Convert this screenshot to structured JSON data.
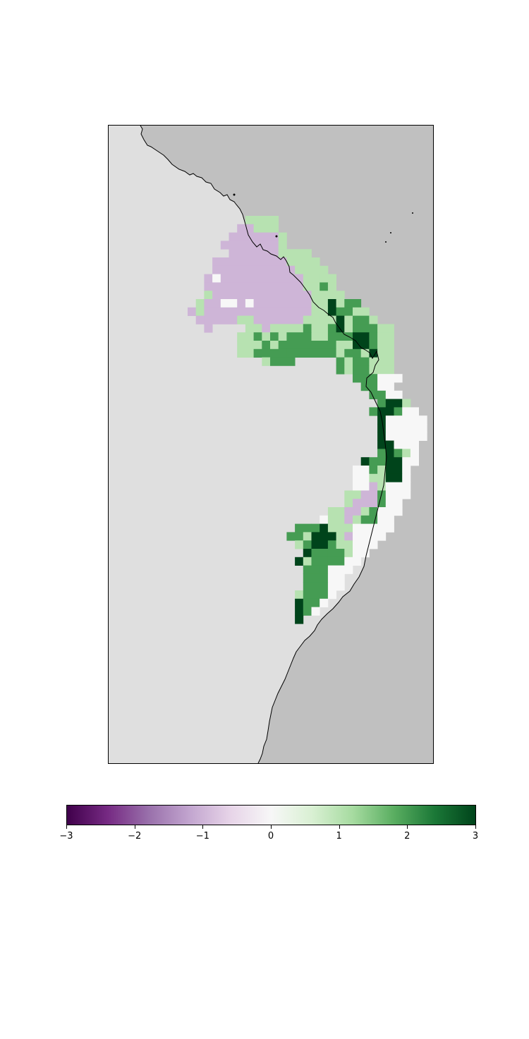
{
  "colors": {
    "ocean": "#c0c0c0",
    "land": "#dfdfdf",
    "coastline": "#000000",
    "colormap": [
      "#40004b",
      "#762a83",
      "#9970ab",
      "#c2a5cf",
      "#e7d4e8",
      "#f7f7f7",
      "#d9f0d3",
      "#a6dba0",
      "#5aae61",
      "#1b7837",
      "#00441b"
    ]
  },
  "chart_data": {
    "type": "heatmap",
    "vmin": -3,
    "vmax": 3,
    "colorbar_ticks": [
      "−3",
      "−2",
      "−1",
      "0",
      "1",
      "2",
      "3"
    ],
    "cell_rows": [
      {
        "row": 0,
        "segments": [
          [
            12,
            12,
            1
          ],
          [
            13,
            15,
            1
          ]
        ]
      },
      {
        "row": 1,
        "segments": [
          [
            11,
            11,
            -1
          ],
          [
            12,
            12,
            -1
          ],
          [
            13,
            15,
            1
          ]
        ]
      },
      {
        "row": 2,
        "segments": [
          [
            10,
            15,
            -1
          ],
          [
            16,
            16,
            1
          ]
        ]
      },
      {
        "row": 3,
        "segments": [
          [
            9,
            15,
            -1
          ],
          [
            16,
            16,
            1
          ]
        ]
      },
      {
        "row": 4,
        "segments": [
          [
            10,
            15,
            -1
          ],
          [
            16,
            17,
            1
          ],
          [
            18,
            19,
            1
          ]
        ]
      },
      {
        "row": 5,
        "segments": [
          [
            8,
            16,
            -1
          ],
          [
            17,
            18,
            1
          ],
          [
            19,
            20,
            1
          ]
        ]
      },
      {
        "row": 6,
        "segments": [
          [
            8,
            17,
            -1
          ],
          [
            18,
            19,
            1
          ],
          [
            20,
            21,
            1
          ]
        ]
      },
      {
        "row": 7,
        "segments": [
          [
            7,
            7,
            -1
          ],
          [
            8,
            8,
            0
          ],
          [
            9,
            18,
            -1
          ],
          [
            19,
            20,
            1
          ],
          [
            21,
            22,
            1
          ]
        ]
      },
      {
        "row": 8,
        "segments": [
          [
            7,
            7,
            -1
          ],
          [
            8,
            18,
            -1
          ],
          [
            19,
            20,
            1
          ],
          [
            21,
            21,
            2
          ],
          [
            22,
            22,
            1
          ]
        ]
      },
      {
        "row": 9,
        "segments": [
          [
            7,
            7,
            1
          ],
          [
            8,
            19,
            -1
          ],
          [
            20,
            22,
            1
          ],
          [
            23,
            23,
            1
          ]
        ]
      },
      {
        "row": 10,
        "segments": [
          [
            6,
            6,
            1
          ],
          [
            7,
            8,
            -1
          ],
          [
            9,
            10,
            0
          ],
          [
            11,
            11,
            -1
          ],
          [
            12,
            12,
            0
          ],
          [
            13,
            19,
            -1
          ],
          [
            20,
            21,
            1
          ],
          [
            22,
            22,
            3
          ],
          [
            23,
            23,
            1
          ],
          [
            24,
            25,
            2
          ]
        ]
      },
      {
        "row": 11,
        "segments": [
          [
            5,
            5,
            -1
          ],
          [
            6,
            6,
            1
          ],
          [
            7,
            19,
            -1
          ],
          [
            20,
            21,
            1
          ],
          [
            22,
            22,
            3
          ],
          [
            23,
            24,
            2
          ],
          [
            25,
            26,
            1
          ]
        ]
      },
      {
        "row": 12,
        "segments": [
          [
            6,
            6,
            -1
          ],
          [
            7,
            10,
            -1
          ],
          [
            11,
            12,
            1
          ],
          [
            13,
            18,
            -1
          ],
          [
            19,
            20,
            1
          ],
          [
            21,
            22,
            1
          ],
          [
            23,
            23,
            3
          ],
          [
            24,
            24,
            1
          ],
          [
            25,
            26,
            2
          ],
          [
            27,
            27,
            1
          ]
        ]
      },
      {
        "row": 13,
        "segments": [
          [
            7,
            7,
            -1
          ],
          [
            12,
            13,
            1
          ],
          [
            14,
            14,
            -1
          ],
          [
            15,
            18,
            1
          ],
          [
            19,
            19,
            2
          ],
          [
            20,
            21,
            1
          ],
          [
            22,
            22,
            2
          ],
          [
            23,
            23,
            3
          ],
          [
            24,
            24,
            1
          ],
          [
            25,
            27,
            2
          ],
          [
            28,
            29,
            1
          ]
        ]
      },
      {
        "row": 14,
        "segments": [
          [
            11,
            11,
            1
          ],
          [
            12,
            12,
            1
          ],
          [
            13,
            13,
            2
          ],
          [
            14,
            14,
            1
          ],
          [
            15,
            15,
            2
          ],
          [
            16,
            16,
            1
          ],
          [
            17,
            19,
            2
          ],
          [
            20,
            21,
            1
          ],
          [
            22,
            24,
            2
          ],
          [
            25,
            26,
            3
          ],
          [
            27,
            27,
            2
          ],
          [
            28,
            29,
            1
          ]
        ]
      },
      {
        "row": 15,
        "segments": [
          [
            11,
            12,
            1
          ],
          [
            13,
            13,
            1
          ],
          [
            14,
            14,
            2
          ],
          [
            15,
            15,
            1
          ],
          [
            16,
            22,
            2
          ],
          [
            23,
            24,
            1
          ],
          [
            25,
            26,
            3
          ],
          [
            27,
            27,
            2
          ],
          [
            28,
            29,
            1
          ]
        ]
      },
      {
        "row": 16,
        "segments": [
          [
            11,
            12,
            1
          ],
          [
            13,
            16,
            2
          ],
          [
            17,
            22,
            2
          ],
          [
            23,
            23,
            1
          ],
          [
            24,
            25,
            2
          ],
          [
            26,
            26,
            1
          ],
          [
            27,
            27,
            3
          ],
          [
            28,
            29,
            1
          ]
        ]
      },
      {
        "row": 17,
        "segments": [
          [
            14,
            14,
            1
          ],
          [
            15,
            17,
            2
          ],
          [
            23,
            23,
            2
          ],
          [
            24,
            24,
            1
          ],
          [
            25,
            26,
            2
          ],
          [
            27,
            29,
            1
          ]
        ]
      },
      {
        "row": 18,
        "segments": [
          [
            23,
            23,
            2
          ],
          [
            24,
            24,
            1
          ],
          [
            25,
            26,
            2
          ],
          [
            27,
            27,
            1
          ],
          [
            28,
            29,
            1
          ]
        ]
      },
      {
        "row": 19,
        "segments": [
          [
            25,
            27,
            2
          ],
          [
            28,
            29,
            0
          ],
          [
            30,
            30,
            0
          ]
        ]
      },
      {
        "row": 20,
        "segments": [
          [
            26,
            27,
            2
          ],
          [
            28,
            29,
            0
          ]
        ]
      },
      {
        "row": 21,
        "segments": [
          [
            27,
            28,
            2
          ],
          [
            29,
            30,
            0
          ]
        ]
      },
      {
        "row": 22,
        "segments": [
          [
            28,
            28,
            2
          ],
          [
            29,
            30,
            3
          ],
          [
            31,
            31,
            1
          ]
        ]
      },
      {
        "row": 23,
        "segments": [
          [
            27,
            27,
            2
          ],
          [
            28,
            29,
            3
          ],
          [
            30,
            30,
            2
          ],
          [
            31,
            32,
            0
          ]
        ]
      },
      {
        "row": 24,
        "segments": [
          [
            28,
            28,
            3
          ],
          [
            29,
            33,
            0
          ]
        ]
      },
      {
        "row": 25,
        "segments": [
          [
            28,
            28,
            3
          ],
          [
            29,
            33,
            0
          ]
        ]
      },
      {
        "row": 26,
        "segments": [
          [
            28,
            28,
            3
          ],
          [
            29,
            33,
            0
          ]
        ]
      },
      {
        "row": 27,
        "segments": [
          [
            28,
            28,
            3
          ],
          [
            29,
            29,
            3
          ],
          [
            30,
            32,
            0
          ]
        ]
      },
      {
        "row": 28,
        "segments": [
          [
            28,
            28,
            2
          ],
          [
            29,
            29,
            3
          ],
          [
            30,
            30,
            2
          ],
          [
            31,
            31,
            1
          ],
          [
            32,
            32,
            0
          ]
        ]
      },
      {
        "row": 29,
        "segments": [
          [
            26,
            26,
            3
          ],
          [
            27,
            27,
            2
          ],
          [
            28,
            28,
            2
          ],
          [
            29,
            30,
            3
          ],
          [
            31,
            32,
            0
          ]
        ]
      },
      {
        "row": 30,
        "segments": [
          [
            25,
            26,
            0
          ],
          [
            27,
            27,
            2
          ],
          [
            28,
            28,
            1
          ],
          [
            29,
            30,
            3
          ],
          [
            31,
            31,
            0
          ]
        ]
      },
      {
        "row": 31,
        "segments": [
          [
            25,
            26,
            0
          ],
          [
            27,
            27,
            1
          ],
          [
            28,
            28,
            1
          ],
          [
            29,
            30,
            3
          ],
          [
            31,
            31,
            0
          ]
        ]
      },
      {
        "row": 32,
        "segments": [
          [
            25,
            26,
            0
          ],
          [
            27,
            27,
            -1
          ],
          [
            28,
            28,
            1
          ],
          [
            29,
            31,
            0
          ]
        ]
      },
      {
        "row": 33,
        "segments": [
          [
            24,
            24,
            1
          ],
          [
            25,
            25,
            1
          ],
          [
            26,
            27,
            -1
          ],
          [
            28,
            28,
            2
          ],
          [
            29,
            31,
            0
          ]
        ]
      },
      {
        "row": 34,
        "segments": [
          [
            24,
            24,
            1
          ],
          [
            25,
            25,
            -1
          ],
          [
            26,
            27,
            -1
          ],
          [
            28,
            28,
            2
          ],
          [
            29,
            30,
            0
          ]
        ]
      },
      {
        "row": 35,
        "segments": [
          [
            22,
            23,
            1
          ],
          [
            24,
            25,
            -1
          ],
          [
            26,
            26,
            1
          ],
          [
            27,
            27,
            2
          ],
          [
            28,
            30,
            0
          ]
        ]
      },
      {
        "row": 36,
        "segments": [
          [
            21,
            21,
            0
          ],
          [
            22,
            23,
            1
          ],
          [
            24,
            24,
            -1
          ],
          [
            25,
            25,
            1
          ],
          [
            26,
            27,
            2
          ],
          [
            28,
            29,
            0
          ]
        ]
      },
      {
        "row": 37,
        "segments": [
          [
            18,
            19,
            2
          ],
          [
            20,
            20,
            2
          ],
          [
            21,
            21,
            3
          ],
          [
            22,
            23,
            1
          ],
          [
            24,
            24,
            1
          ],
          [
            25,
            27,
            0
          ],
          [
            28,
            29,
            0
          ]
        ]
      },
      {
        "row": 38,
        "segments": [
          [
            17,
            18,
            2
          ],
          [
            19,
            19,
            1
          ],
          [
            20,
            22,
            3
          ],
          [
            23,
            23,
            1
          ],
          [
            24,
            24,
            -1
          ],
          [
            25,
            28,
            0
          ]
        ]
      },
      {
        "row": 39,
        "segments": [
          [
            18,
            18,
            1
          ],
          [
            19,
            19,
            2
          ],
          [
            20,
            21,
            3
          ],
          [
            22,
            22,
            2
          ],
          [
            23,
            24,
            1
          ],
          [
            25,
            27,
            0
          ]
        ]
      },
      {
        "row": 40,
        "segments": [
          [
            19,
            19,
            3
          ],
          [
            20,
            21,
            2
          ],
          [
            22,
            23,
            2
          ],
          [
            24,
            24,
            1
          ],
          [
            25,
            26,
            0
          ]
        ]
      },
      {
        "row": 41,
        "segments": [
          [
            18,
            18,
            3
          ],
          [
            19,
            19,
            1
          ],
          [
            20,
            21,
            2
          ],
          [
            22,
            23,
            2
          ],
          [
            24,
            25,
            0
          ]
        ]
      },
      {
        "row": 42,
        "segments": [
          [
            19,
            20,
            2
          ],
          [
            21,
            21,
            2
          ],
          [
            22,
            23,
            0
          ],
          [
            24,
            24,
            0
          ]
        ]
      },
      {
        "row": 43,
        "segments": [
          [
            19,
            21,
            2
          ],
          [
            22,
            22,
            0
          ],
          [
            23,
            23,
            0
          ]
        ]
      },
      {
        "row": 44,
        "segments": [
          [
            19,
            21,
            2
          ],
          [
            22,
            22,
            0
          ],
          [
            23,
            23,
            0
          ]
        ]
      },
      {
        "row": 45,
        "segments": [
          [
            18,
            18,
            1
          ],
          [
            19,
            21,
            2
          ],
          [
            22,
            22,
            0
          ]
        ]
      },
      {
        "row": 46,
        "segments": [
          [
            18,
            18,
            3
          ],
          [
            19,
            20,
            2
          ],
          [
            21,
            21,
            0
          ]
        ]
      },
      {
        "row": 47,
        "segments": [
          [
            18,
            18,
            3
          ],
          [
            19,
            19,
            2
          ],
          [
            20,
            20,
            0
          ]
        ]
      },
      {
        "row": 48,
        "segments": [
          [
            18,
            18,
            3
          ]
        ]
      }
    ]
  }
}
